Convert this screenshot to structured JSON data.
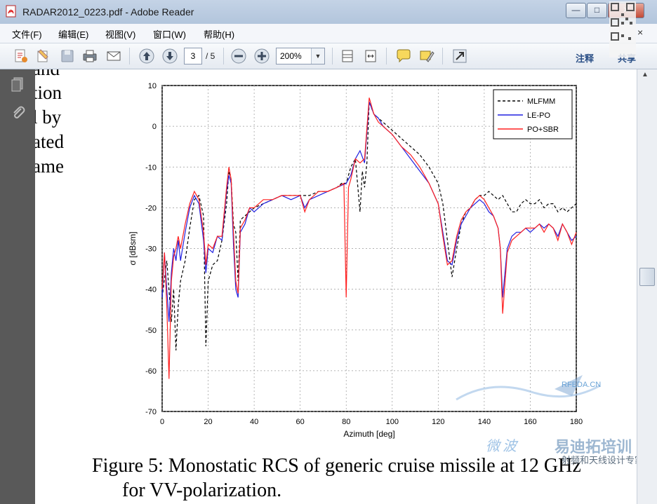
{
  "window": {
    "title": "RADAR2012_0223.pdf - Adobe Reader",
    "controls": {
      "minimize": "—",
      "maximize": "□",
      "close": "✕"
    }
  },
  "menu": [
    "文件(F)",
    "编辑(E)",
    "视图(V)",
    "窗口(W)",
    "帮助(H)"
  ],
  "menu_close": "×",
  "toolbar": {
    "current_page": "3",
    "total_pages": "/ 5",
    "zoom": "200%",
    "annotate": "注释",
    "share": "共享",
    "icons": [
      "create-pdf-icon",
      "edit-icon",
      "save-icon",
      "print-icon",
      "email-icon",
      "prev-page-icon",
      "next-page-icon",
      "zoom-out-icon",
      "zoom-in-icon",
      "fit-page-icon",
      "fit-width-icon",
      "comment-icon",
      "highlight-icon",
      "expand-icon"
    ]
  },
  "document": {
    "body_fragments": [
      "and",
      "tion",
      "l by",
      "ated",
      "ame"
    ],
    "caption_line1": "Figure 5: Monostatic RCS of generic cruise missile at 12 GHz",
    "caption_line2": "for VV-polarization."
  },
  "watermark": {
    "site": "RFEDA.CN",
    "line1": "微波",
    "line2": "易迪拓培训",
    "line3": "射频和天线设计专家"
  },
  "colors": {
    "mlfmm": "#000000",
    "lepo": "#2020e0",
    "posbr": "#ff2020",
    "accent": "#2a4f86"
  },
  "chart_data": {
    "type": "line",
    "xlabel": "Azimuth [deg]",
    "ylabel": "σ [dBsm]",
    "xlim": [
      0,
      180
    ],
    "ylim": [
      -70,
      10
    ],
    "xticks": [
      0,
      20,
      40,
      60,
      80,
      100,
      120,
      140,
      160,
      180
    ],
    "yticks": [
      10,
      0,
      -10,
      -20,
      -30,
      -40,
      -50,
      -60,
      -70
    ],
    "grid": true,
    "legend_position": "top-right",
    "series": [
      {
        "name": "MLFMM",
        "style": "dashed",
        "color": "#000000",
        "x": [
          0,
          2,
          4,
          5,
          6,
          7,
          8,
          10,
          12,
          14,
          16,
          18,
          19,
          20,
          22,
          24,
          26,
          28,
          29,
          30,
          31,
          32,
          33,
          34,
          36,
          38,
          40,
          44,
          48,
          52,
          56,
          60,
          64,
          68,
          72,
          76,
          78,
          80,
          82,
          84,
          86,
          87,
          88,
          89,
          90,
          92,
          94,
          96,
          100,
          104,
          108,
          112,
          116,
          120,
          122,
          124,
          126,
          128,
          130,
          132,
          134,
          136,
          138,
          140,
          142,
          144,
          146,
          148,
          150,
          152,
          154,
          156,
          158,
          160,
          162,
          164,
          166,
          168,
          170,
          172,
          174,
          176,
          178,
          180
        ],
        "y": [
          -42,
          -33,
          -48,
          -40,
          -55,
          -44,
          -38,
          -33,
          -25,
          -18,
          -17,
          -22,
          -54,
          -38,
          -34,
          -33,
          -28,
          -19,
          -11,
          -13,
          -24,
          -26,
          -38,
          -23,
          -22,
          -21,
          -20,
          -19,
          -18,
          -17,
          -17,
          -17,
          -17,
          -16,
          -16,
          -15,
          -14,
          -14,
          -10,
          -8,
          -21,
          -11,
          -15,
          -9,
          6,
          3,
          2,
          1,
          -1,
          -3,
          -5,
          -7,
          -10,
          -14,
          -19,
          -28,
          -37,
          -30,
          -24,
          -21,
          -20,
          -18,
          -17,
          -17,
          -16,
          -17,
          -18,
          -17,
          -19,
          -21,
          -21,
          -19,
          -18,
          -19,
          -19,
          -18,
          -20,
          -19,
          -19,
          -21,
          -20,
          -21,
          -20,
          -19
        ]
      },
      {
        "name": "LE-PO",
        "style": "solid",
        "color": "#2020e0",
        "x": [
          0,
          1,
          2,
          3,
          4,
          5,
          6,
          7,
          8,
          10,
          12,
          14,
          16,
          18,
          19,
          20,
          22,
          24,
          26,
          28,
          29,
          30,
          31,
          32,
          33,
          34,
          36,
          38,
          40,
          44,
          48,
          52,
          56,
          60,
          62,
          64,
          68,
          72,
          76,
          80,
          82,
          84,
          86,
          88,
          90,
          92,
          94,
          96,
          100,
          104,
          108,
          112,
          116,
          120,
          122,
          124,
          126,
          128,
          130,
          132,
          134,
          136,
          138,
          140,
          142,
          144,
          146,
          147,
          148,
          150,
          152,
          154,
          156,
          158,
          160,
          162,
          164,
          166,
          168,
          170,
          172,
          174,
          176,
          178,
          180
        ],
        "y": [
          -42,
          -31,
          -40,
          -48,
          -36,
          -30,
          -33,
          -28,
          -33,
          -26,
          -20,
          -17,
          -19,
          -28,
          -36,
          -30,
          -31,
          -27,
          -28,
          -16,
          -12,
          -14,
          -29,
          -40,
          -42,
          -26,
          -24,
          -20,
          -21,
          -19,
          -18,
          -17,
          -18,
          -17,
          -20,
          -18,
          -17,
          -16,
          -15,
          -14,
          -12,
          -8,
          -6,
          -9,
          6,
          3,
          2,
          0,
          -2,
          -5,
          -8,
          -11,
          -14,
          -19,
          -26,
          -33,
          -34,
          -28,
          -24,
          -22,
          -20,
          -19,
          -18,
          -19,
          -21,
          -22,
          -25,
          -30,
          -42,
          -30,
          -27,
          -26,
          -26,
          -25,
          -26,
          -25,
          -24,
          -25,
          -24,
          -25,
          -27,
          -24,
          -26,
          -28,
          -27
        ]
      },
      {
        "name": "PO+SBR",
        "style": "solid",
        "color": "#ff2020",
        "x": [
          0,
          1,
          2,
          3,
          4,
          5,
          6,
          7,
          8,
          10,
          12,
          14,
          16,
          18,
          19,
          20,
          22,
          24,
          26,
          28,
          29,
          30,
          31,
          32,
          33,
          34,
          36,
          38,
          40,
          44,
          48,
          52,
          56,
          60,
          62,
          64,
          68,
          72,
          76,
          79,
          80,
          81,
          82,
          84,
          86,
          88,
          90,
          92,
          94,
          96,
          100,
          104,
          108,
          112,
          116,
          120,
          122,
          124,
          126,
          128,
          130,
          132,
          134,
          136,
          138,
          140,
          142,
          144,
          146,
          147,
          148,
          150,
          152,
          154,
          156,
          158,
          160,
          162,
          164,
          166,
          168,
          170,
          172,
          174,
          176,
          178,
          180
        ],
        "y": [
          -40,
          -31,
          -44,
          -62,
          -38,
          -32,
          -30,
          -27,
          -30,
          -24,
          -19,
          -16,
          -18,
          -26,
          -34,
          -29,
          -30,
          -27,
          -27,
          -15,
          -10,
          -13,
          -26,
          -38,
          -41,
          -25,
          -23,
          -20,
          -20,
          -18,
          -18,
          -17,
          -17,
          -17,
          -21,
          -18,
          -16,
          -16,
          -15,
          -14,
          -42,
          -15,
          -13,
          -8,
          -9,
          -8,
          7,
          3,
          1,
          0,
          -2,
          -5,
          -7,
          -10,
          -14,
          -19,
          -27,
          -34,
          -33,
          -27,
          -23,
          -21,
          -20,
          -18,
          -17,
          -18,
          -20,
          -22,
          -25,
          -30,
          -46,
          -31,
          -28,
          -27,
          -26,
          -25,
          -25,
          -25,
          -24,
          -26,
          -24,
          -25,
          -28,
          -24,
          -26,
          -29,
          -26
        ]
      }
    ]
  }
}
